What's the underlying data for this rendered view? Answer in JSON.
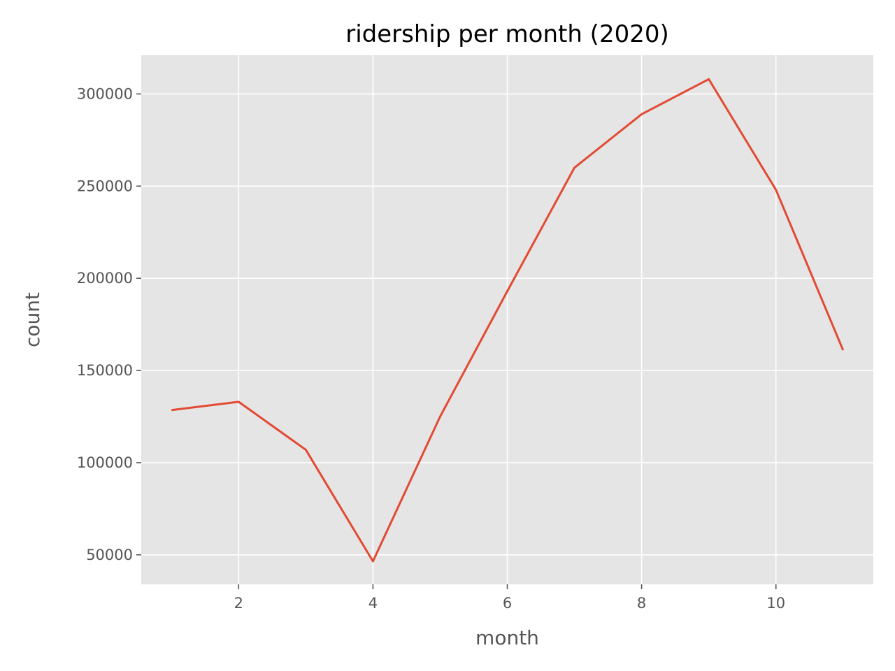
{
  "colors": {
    "plot_background": "#E5E5E5",
    "grid": "#FFFFFF",
    "line": "#E24A33",
    "tick_text": "#555555",
    "title_text": "#000000"
  },
  "chart_data": {
    "type": "line",
    "title": "ridership per month (2020)",
    "xlabel": "month",
    "ylabel": "count",
    "xlim": [
      0.55,
      11.45
    ],
    "ylim": [
      34000,
      321000
    ],
    "xticks": [
      2,
      4,
      6,
      8,
      10
    ],
    "yticks": [
      50000,
      100000,
      150000,
      200000,
      250000,
      300000
    ],
    "grid": true,
    "legend": "none",
    "series": [
      {
        "x": [
          1,
          2,
          3,
          4,
          5,
          6,
          7,
          8,
          9,
          10,
          11
        ],
        "y": [
          128500,
          133000,
          107000,
          46500,
          125000,
          193000,
          260000,
          289000,
          308000,
          248000,
          161000
        ]
      }
    ]
  }
}
